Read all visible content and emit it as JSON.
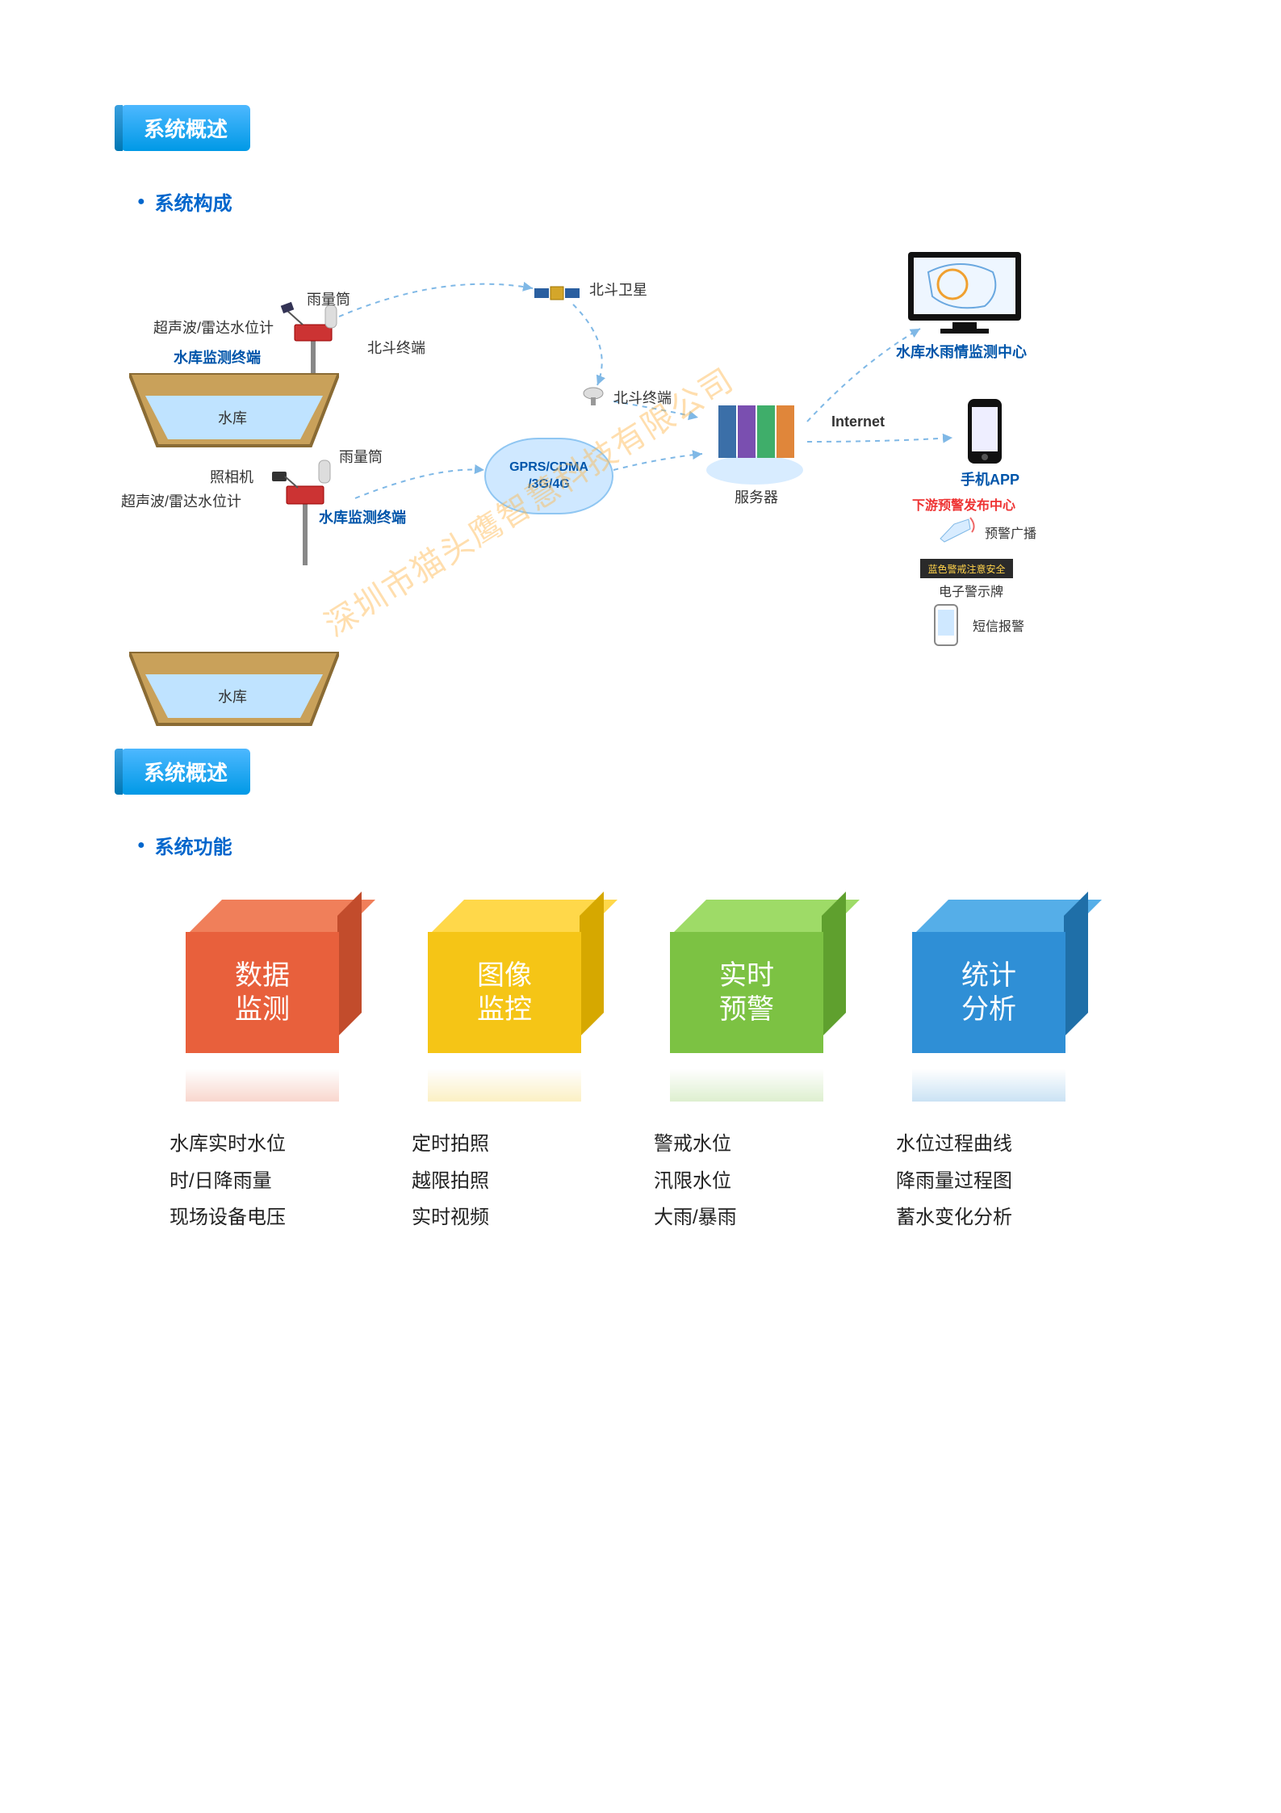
{
  "watermark_text": "深圳市猫头鹰智慧科技有限公司",
  "section1": {
    "tag": "系统概述",
    "sub": "系统构成",
    "labels": {
      "rain_gauge": "雨量筒",
      "ultrasonic": "超声波/雷达水位计",
      "terminal": "水库监测终端",
      "reservoir": "水库",
      "camera": "照相机",
      "bd_terminal": "北斗终端",
      "bd_satellite": "北斗卫星",
      "network": "GPRS/CDMA\n/3G/4G",
      "server": "服务器",
      "internet": "Internet",
      "center": "水库水雨情监测中心",
      "app": "手机APP",
      "downstream_center": "下游预警发布中心",
      "broadcast": "预警广播",
      "sign_board": "电子警示牌",
      "sign_text": "蓝色警戒注意安全",
      "sms": "短信报警"
    },
    "colors": {
      "water": "#bfe3ff",
      "soil": "#c9a15a",
      "soil_dark": "#8a6b34",
      "cloud_fill": "#cfe8ff",
      "cloud_border": "#8fc6f2",
      "dash": "#7fb8e6",
      "text_blue": "#0055aa"
    }
  },
  "section2": {
    "tag": "系统概述",
    "sub": "系统功能",
    "cubes": [
      {
        "title": "数据\n监测",
        "front": "#e8603c",
        "top": "#f07f5a",
        "side": "#c24c2c",
        "items": [
          "水库实时水位",
          "时/日降雨量",
          "现场设备电压"
        ]
      },
      {
        "title": "图像\n监控",
        "front": "#f5c516",
        "top": "#ffd84a",
        "side": "#d6a800",
        "items": [
          "定时拍照",
          "越限拍照",
          "实时视频"
        ]
      },
      {
        "title": "实时\n预警",
        "front": "#7cc243",
        "top": "#9edb67",
        "side": "#5fa02e",
        "items": [
          "警戒水位",
          "汛限水位",
          "大雨/暴雨"
        ]
      },
      {
        "title": "统计\n分析",
        "front": "#2f8fd6",
        "top": "#55aee8",
        "side": "#1f6fa8",
        "items": [
          "水位过程曲线",
          "降雨量过程图",
          "蓄水变化分析"
        ]
      }
    ]
  }
}
